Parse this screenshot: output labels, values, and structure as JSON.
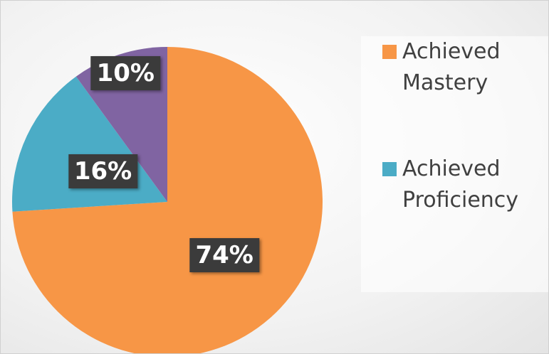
{
  "chart_data": {
    "type": "pie",
    "categories": [
      "Achieved Mastery",
      "Achieved Proficiency",
      null
    ],
    "values": [
      74,
      16,
      10
    ],
    "value_labels": [
      "74%",
      "16%",
      "10%"
    ],
    "colors": [
      "#f79646",
      "#4bacc6",
      "#8064a2"
    ],
    "legend": "right"
  }
}
